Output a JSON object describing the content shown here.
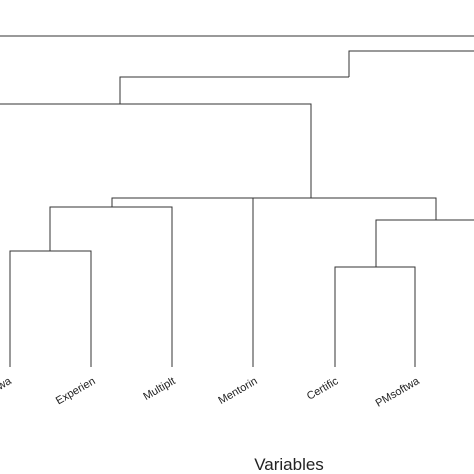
{
  "diagram": {
    "type": "dendrogram",
    "xlabel": "Variables",
    "leaves": [
      {
        "id": "wa",
        "label": "wa"
      },
      {
        "id": "experien",
        "label": "Experien"
      },
      {
        "id": "multiplt",
        "label": "Multiplt"
      },
      {
        "id": "mentorin",
        "label": "Mentorin"
      },
      {
        "id": "certific",
        "label": "Certific"
      },
      {
        "id": "pmsoftwa",
        "label": "PMsoftwa"
      }
    ]
  }
}
